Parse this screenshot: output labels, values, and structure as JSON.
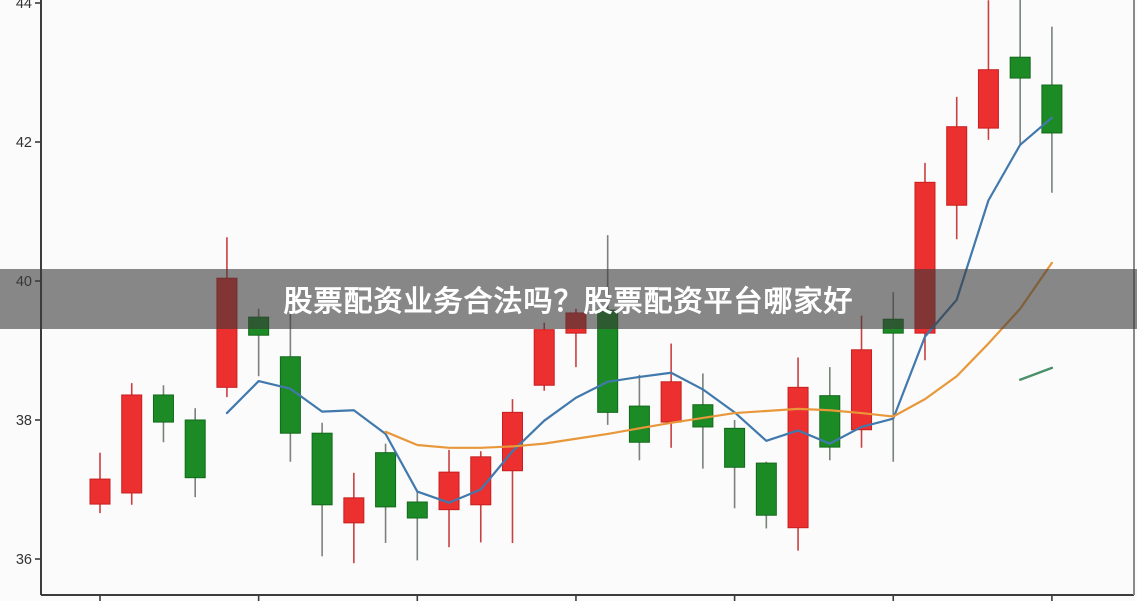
{
  "banner": {
    "text": "股票配资业务合法吗？股票配资平台哪家好",
    "bg_color": "rgba(58,58,58,0.60)",
    "text_color": "#ffffff"
  },
  "chart_data": {
    "type": "candlestick",
    "title": "",
    "xlabel": "",
    "ylabel": "",
    "grid": false,
    "legend": false,
    "ylim": [
      35.6,
      44.05
    ],
    "y_ticks": [
      36,
      38,
      40,
      42,
      44
    ],
    "y_tick_labels": [
      "36",
      "38",
      "40",
      "42",
      "44"
    ],
    "x_tick_every_n_candles": 5,
    "colors": {
      "bull_body": "#ec2f2f",
      "bull_border": "#c81f1f",
      "bull_wick": "#c94040",
      "bear_body": "#1d8b25",
      "bear_border": "#11691a",
      "bear_wick": "#7a827a",
      "ma5_line": "#4179ad",
      "ma10_line": "#e8973a",
      "ma_green_segment": "#4a9068",
      "axis": "#3c3c3c",
      "tick_label": "#333333",
      "plot_bg": "#fbfbfb"
    },
    "candles": [
      {
        "o": 36.79,
        "h": 37.53,
        "l": 36.66,
        "c": 37.15
      },
      {
        "o": 36.95,
        "h": 38.53,
        "l": 36.78,
        "c": 38.36
      },
      {
        "o": 38.36,
        "h": 38.5,
        "l": 37.68,
        "c": 37.97
      },
      {
        "o": 38.0,
        "h": 38.17,
        "l": 36.89,
        "c": 37.17
      },
      {
        "o": 38.47,
        "h": 40.63,
        "l": 38.33,
        "c": 40.04
      },
      {
        "o": 39.48,
        "h": 39.6,
        "l": 38.63,
        "c": 39.22
      },
      {
        "o": 38.91,
        "h": 39.55,
        "l": 37.4,
        "c": 37.81
      },
      {
        "o": 37.81,
        "h": 37.96,
        "l": 36.04,
        "c": 36.78
      },
      {
        "o": 36.52,
        "h": 37.24,
        "l": 35.94,
        "c": 36.88
      },
      {
        "o": 37.53,
        "h": 37.66,
        "l": 36.23,
        "c": 36.75
      },
      {
        "o": 36.82,
        "h": 36.97,
        "l": 35.98,
        "c": 36.59
      },
      {
        "o": 36.71,
        "h": 37.57,
        "l": 36.17,
        "c": 37.25
      },
      {
        "o": 36.78,
        "h": 37.55,
        "l": 36.24,
        "c": 37.47
      },
      {
        "o": 37.27,
        "h": 38.3,
        "l": 36.23,
        "c": 38.11
      },
      {
        "o": 38.5,
        "h": 39.4,
        "l": 38.42,
        "c": 39.3
      },
      {
        "o": 39.25,
        "h": 39.6,
        "l": 38.76,
        "c": 39.54
      },
      {
        "o": 39.58,
        "h": 40.66,
        "l": 37.93,
        "c": 38.11
      },
      {
        "o": 38.2,
        "h": 38.65,
        "l": 37.42,
        "c": 37.68
      },
      {
        "o": 37.97,
        "h": 39.1,
        "l": 37.6,
        "c": 38.55
      },
      {
        "o": 38.22,
        "h": 38.67,
        "l": 37.3,
        "c": 37.9
      },
      {
        "o": 37.88,
        "h": 38.0,
        "l": 36.73,
        "c": 37.32
      },
      {
        "o": 37.38,
        "h": 37.4,
        "l": 36.44,
        "c": 36.63
      },
      {
        "o": 36.45,
        "h": 38.9,
        "l": 36.12,
        "c": 38.47
      },
      {
        "o": 38.35,
        "h": 38.76,
        "l": 37.42,
        "c": 37.61
      },
      {
        "o": 37.86,
        "h": 39.5,
        "l": 37.6,
        "c": 39.01
      },
      {
        "o": 39.45,
        "h": 39.84,
        "l": 37.4,
        "c": 39.25
      },
      {
        "o": 39.25,
        "h": 41.7,
        "l": 38.86,
        "c": 41.42
      },
      {
        "o": 41.09,
        "h": 42.65,
        "l": 40.6,
        "c": 42.22
      },
      {
        "o": 42.2,
        "h": 44.04,
        "l": 42.03,
        "c": 43.04
      },
      {
        "o": 43.22,
        "h": 44.05,
        "l": 41.95,
        "c": 42.92
      },
      {
        "o": 42.82,
        "h": 43.66,
        "l": 41.27,
        "c": 42.13
      }
    ],
    "series": [
      {
        "name": "ma5",
        "start_index": 4,
        "values": [
          38.1,
          38.56,
          38.45,
          38.12,
          38.14,
          37.8,
          36.97,
          36.81,
          37.0,
          37.55,
          37.99,
          38.32,
          38.55,
          38.62,
          38.68,
          38.44,
          38.11,
          37.7,
          37.85,
          37.66,
          37.9,
          38.02,
          39.2,
          39.73,
          41.16,
          41.96,
          42.35
        ]
      },
      {
        "name": "ma10",
        "start_index": 9,
        "values": [
          37.83,
          37.64,
          37.6,
          37.6,
          37.62,
          37.66,
          37.73,
          37.8,
          37.88,
          37.96,
          38.03,
          38.1,
          38.13,
          38.16,
          38.14,
          38.1,
          38.05,
          38.3,
          38.63,
          39.1,
          39.6,
          40.26
        ]
      },
      {
        "name": "ma-green-segment",
        "start_index": 29,
        "values": [
          38.58,
          38.75
        ]
      }
    ]
  }
}
